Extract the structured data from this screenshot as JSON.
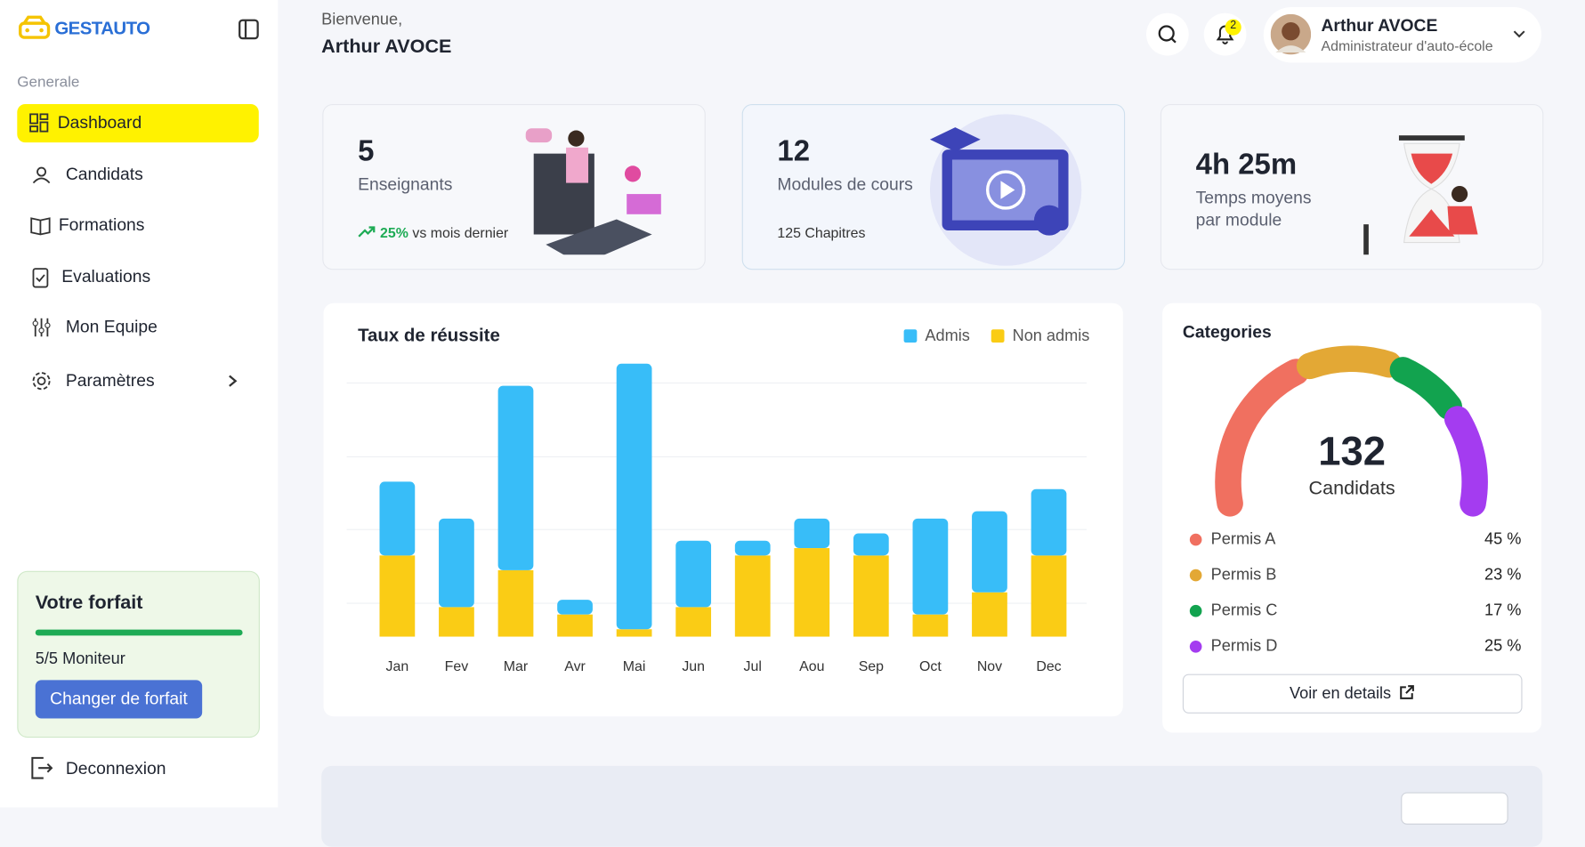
{
  "brand": "GESTAUTO",
  "sidebar": {
    "section": "Generale",
    "menu": [
      "Dashboard",
      "Candidats",
      "Formations",
      "Evaluations",
      "Mon Equipe",
      "Paramètres"
    ],
    "plan": {
      "title": "Votre forfait",
      "usage": "5/5 Moniteur",
      "button": "Changer de forfait"
    },
    "logout": "Deconnexion"
  },
  "header": {
    "greeting": "Bienvenue,",
    "name": "Arthur AVOCE",
    "notifications": 2,
    "user": {
      "name": "Arthur AVOCE",
      "role": "Administrateur d'auto-école"
    }
  },
  "stats": [
    {
      "value": 5,
      "label": "Enseignants",
      "trend": "25%",
      "trend_note": "vs mois dernier"
    },
    {
      "value": 12,
      "label": "Modules de cours",
      "note": "125 Chapitres"
    },
    {
      "value": "4h 25m",
      "label": "Temps moyens par module"
    }
  ],
  "chart_data": {
    "type": "bar",
    "stacked": true,
    "title": "Taux de réussite",
    "legend": "top-right",
    "categories": [
      "Jan",
      "Fev",
      "Mar",
      "Avr",
      "Mai",
      "Jun",
      "Jul",
      "Aou",
      "Sep",
      "Oct",
      "Nov",
      "Dec"
    ],
    "series": [
      {
        "name": "Admis",
        "color": "#38bdf8",
        "values": [
          10,
          12,
          25,
          2,
          36,
          9,
          2,
          4,
          3,
          13,
          11,
          9
        ]
      },
      {
        "name": "Non admis",
        "color": "#facc15",
        "values": [
          11,
          4,
          9,
          3,
          1,
          4,
          11,
          12,
          11,
          3,
          6,
          11
        ]
      }
    ],
    "ylim": [
      0,
      40
    ]
  },
  "categories_panel": {
    "title": "Categories",
    "total": 132,
    "total_label": "Candidats",
    "items": [
      {
        "name": "Permis A",
        "value": 45,
        "label": "45 %",
        "color": "#f07060"
      },
      {
        "name": "Permis B",
        "value": 23,
        "label": "23 %",
        "color": "#e3a835"
      },
      {
        "name": "Permis C",
        "value": 17,
        "label": "17 %",
        "color": "#12a34f"
      },
      {
        "name": "Permis D",
        "value": 25,
        "label": "25 %",
        "color": "#a43cf0"
      }
    ],
    "button": "Voir en details"
  }
}
